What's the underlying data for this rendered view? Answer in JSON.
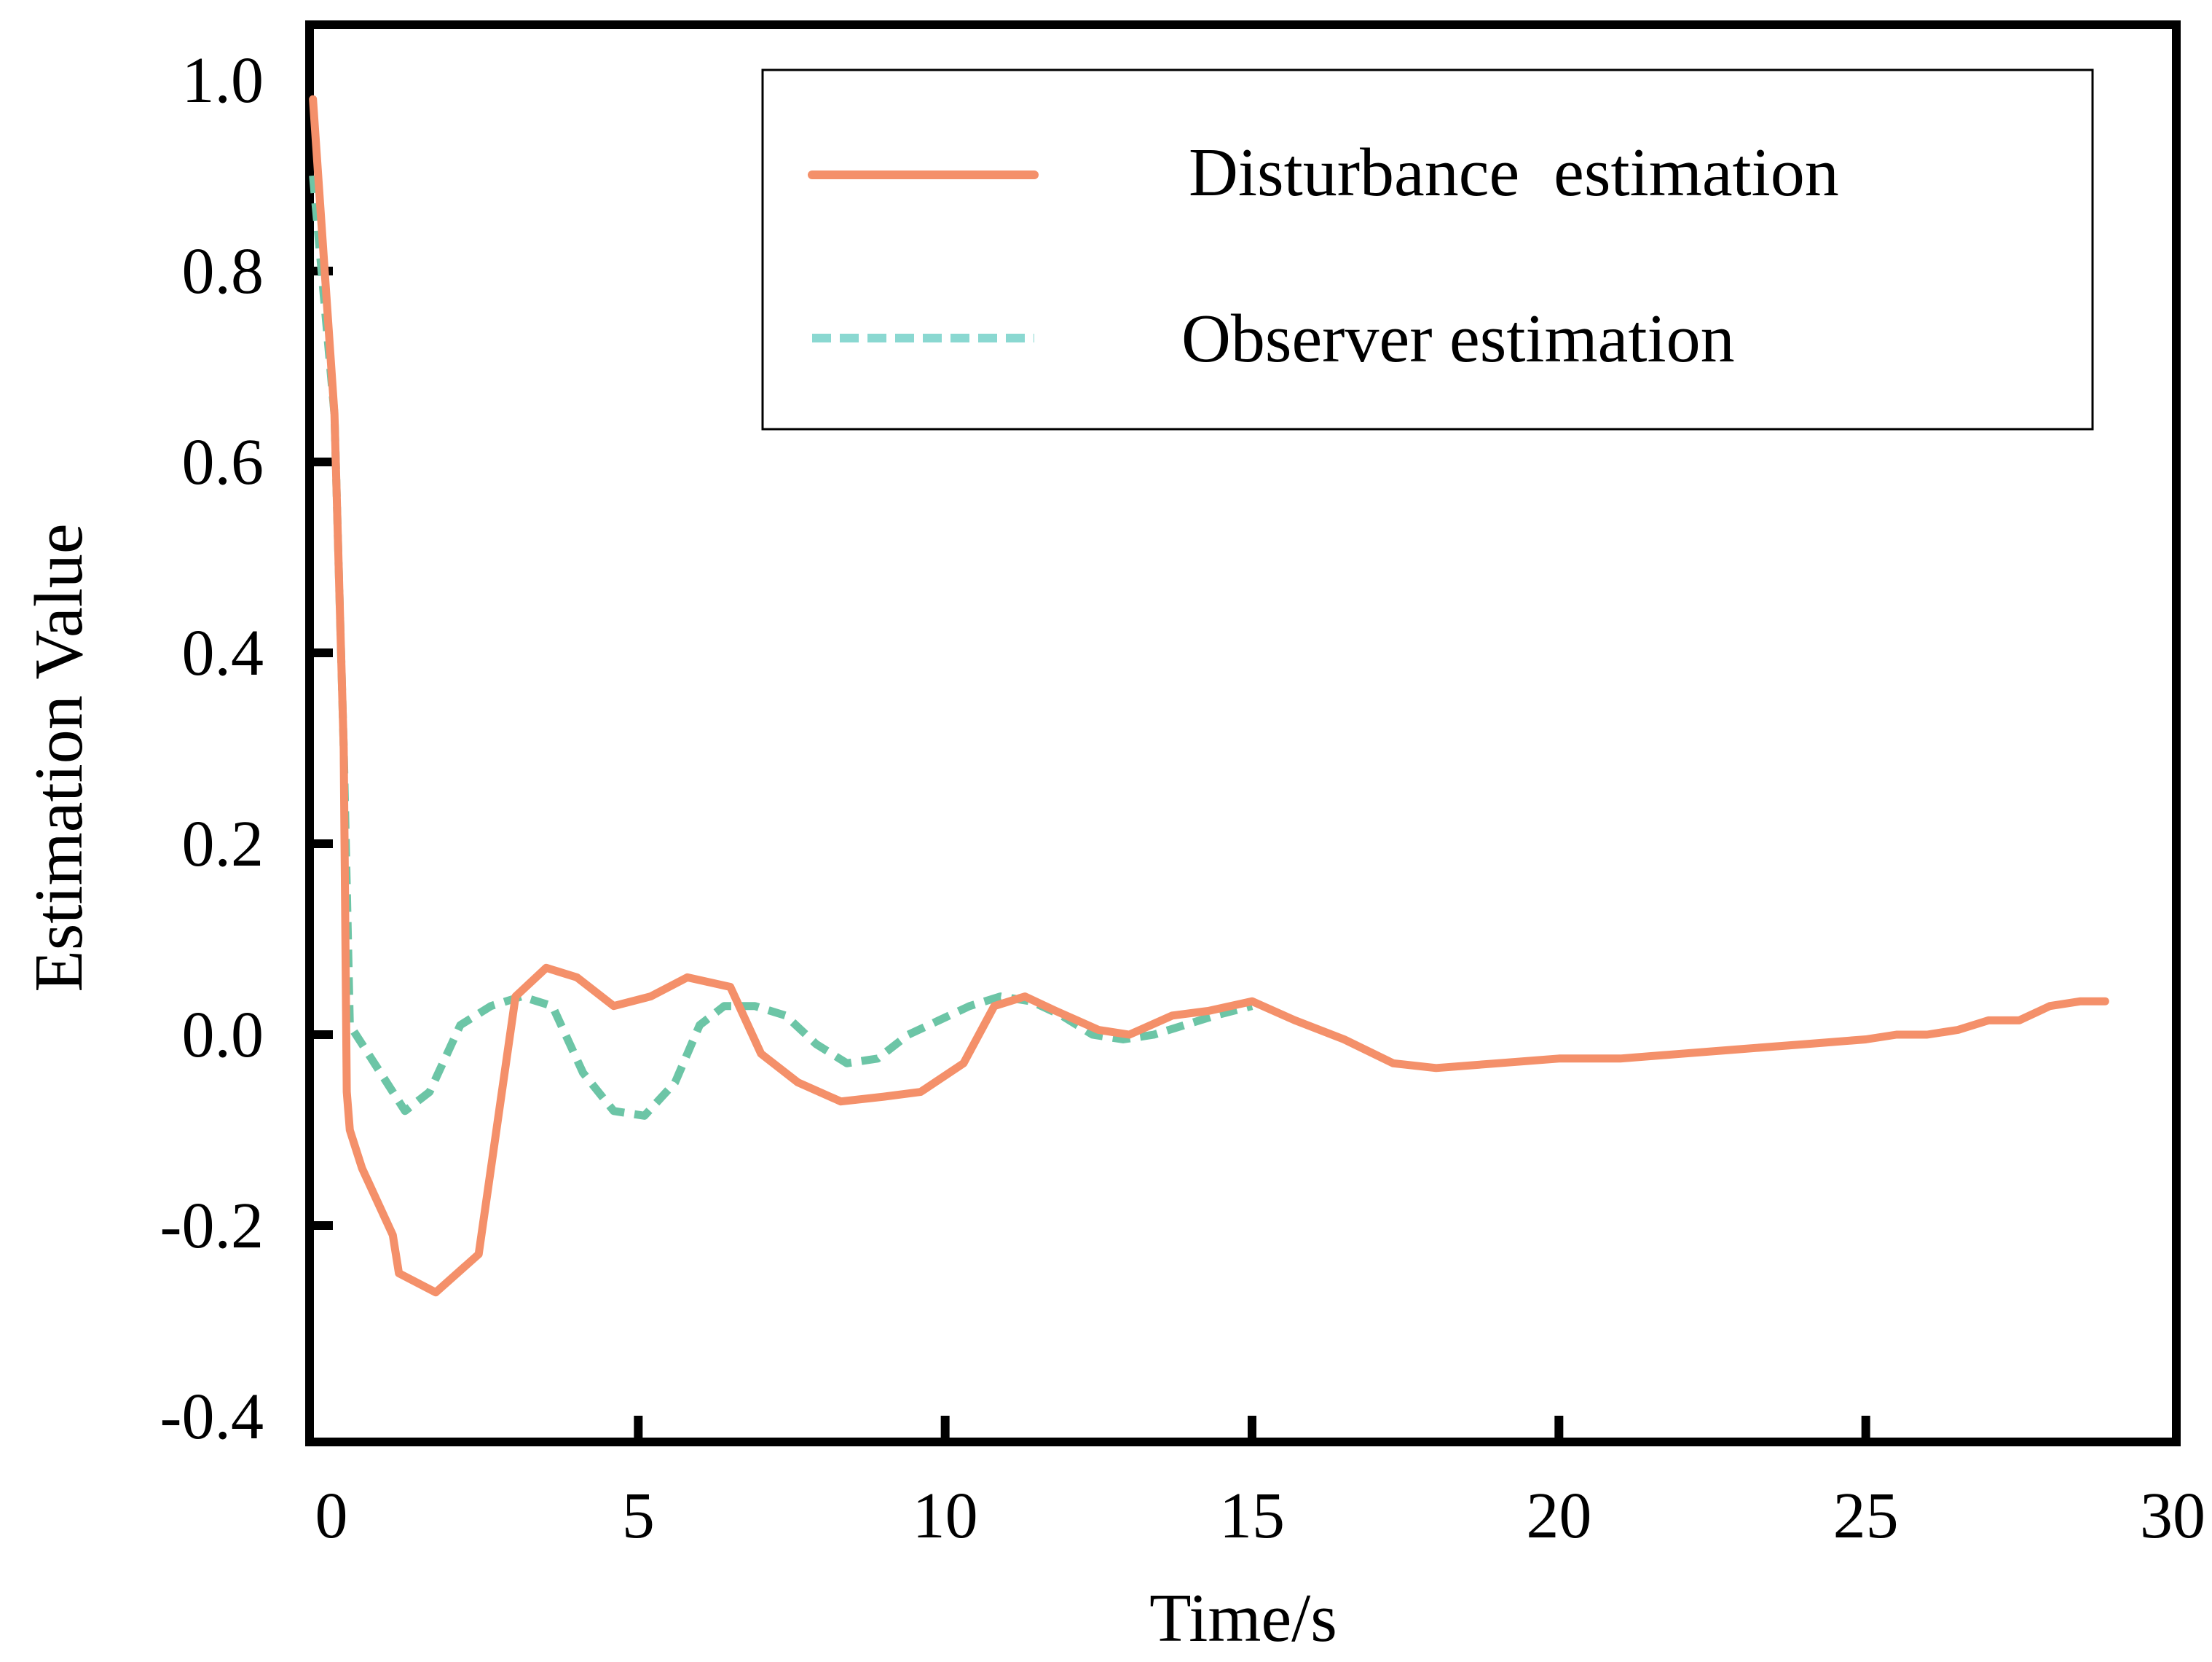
{
  "chart_data": {
    "type": "line",
    "title": "",
    "xlabel": "Time/s",
    "ylabel": "Estimation Value",
    "xlim": [
      0,
      30
    ],
    "ylim": [
      -0.4,
      1.0
    ],
    "xticks": [
      0,
      5,
      10,
      15,
      20,
      25,
      30
    ],
    "xtick_labels": [
      "0",
      "5",
      "10",
      "15",
      "20",
      "25",
      "30"
    ],
    "yticks": [
      -0.4,
      -0.2,
      0.0,
      0.2,
      0.4,
      0.6,
      0.8,
      1.0
    ],
    "ytick_labels": [
      "-0.4",
      "-0.2",
      "0.0",
      "0.2",
      "0.4",
      "0.6",
      "0.8",
      "1.0"
    ],
    "grid": false,
    "legend_position": "top-right",
    "series": [
      {
        "name": "Disturbance  estimation",
        "color": "#f4906a",
        "style": "solid",
        "x": [
          -0.3,
          0.05,
          0.2,
          0.25,
          0.3,
          0.5,
          1.0,
          1.1,
          1.7,
          2.4,
          3.0,
          3.5,
          4.0,
          4.6,
          5.2,
          5.8,
          6.5,
          7.0,
          7.6,
          8.3,
          9.0,
          9.6,
          10.3,
          10.8,
          11.3,
          11.8,
          12.5,
          13.0,
          13.7,
          14.3,
          15.0,
          15.7,
          16.5,
          17.3,
          18.0,
          19.0,
          20.0,
          21.0,
          22.0,
          23.0,
          24.0,
          25.0,
          25.5,
          26.0,
          26.5,
          27.0,
          27.5,
          28.0,
          28.5,
          28.9
        ],
        "y": [
          0.98,
          0.65,
          0.3,
          -0.06,
          -0.1,
          -0.14,
          -0.21,
          -0.25,
          -0.27,
          -0.23,
          0.04,
          0.07,
          0.06,
          0.03,
          0.04,
          0.06,
          0.05,
          -0.02,
          -0.05,
          -0.07,
          -0.065,
          -0.06,
          -0.03,
          0.03,
          0.04,
          0.025,
          0.005,
          0.0,
          0.02,
          0.025,
          0.035,
          0.015,
          -0.005,
          -0.03,
          -0.035,
          -0.03,
          -0.025,
          -0.025,
          -0.02,
          -0.015,
          -0.01,
          -0.005,
          0.0,
          0.0,
          0.005,
          0.015,
          0.015,
          0.03,
          0.035,
          0.035
        ]
      },
      {
        "name": "Observer estimation",
        "color": "#6cc5a6",
        "style": "dashed",
        "x": [
          -0.3,
          0.05,
          0.2,
          0.3,
          0.6,
          1.0,
          1.2,
          1.6,
          2.1,
          2.6,
          3.1,
          3.6,
          4.1,
          4.6,
          5.1,
          5.6,
          6.0,
          6.4,
          6.9,
          7.4,
          7.9,
          8.4,
          8.9,
          9.4,
          9.9,
          10.4,
          10.9,
          11.4,
          11.9,
          12.4,
          12.9,
          13.4,
          13.9,
          14.4,
          15.0
        ],
        "y": [
          0.9,
          0.65,
          0.3,
          0.01,
          -0.02,
          -0.06,
          -0.08,
          -0.06,
          0.01,
          0.03,
          0.04,
          0.03,
          -0.04,
          -0.08,
          -0.085,
          -0.05,
          0.01,
          0.03,
          0.03,
          0.02,
          -0.01,
          -0.03,
          -0.025,
          0.0,
          0.015,
          0.03,
          0.04,
          0.035,
          0.02,
          0.0,
          -0.005,
          0.0,
          0.01,
          0.02,
          0.03
        ]
      }
    ]
  }
}
